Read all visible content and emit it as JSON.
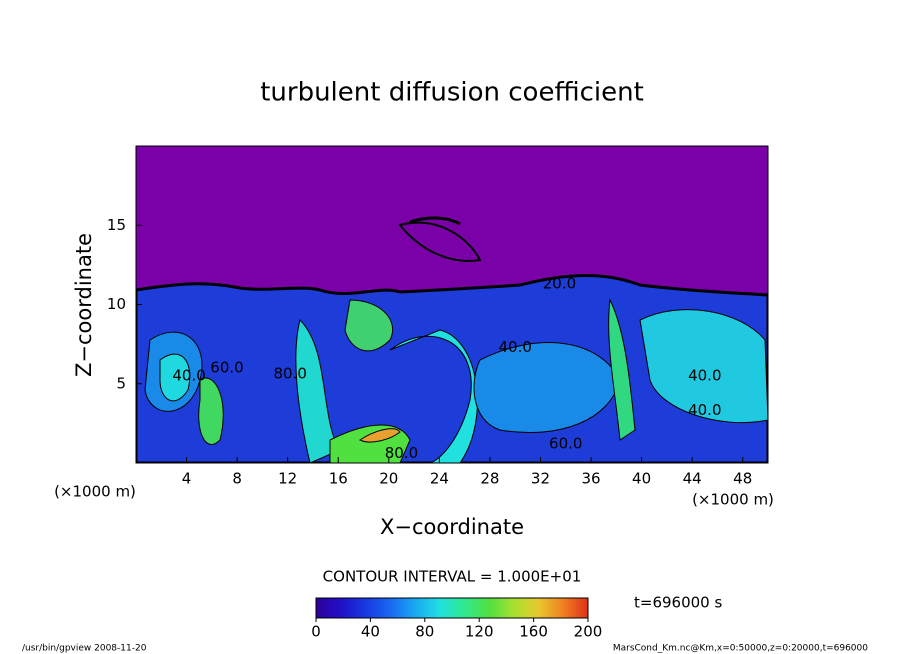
{
  "chart_data": {
    "type": "contour",
    "title": "turbulent diffusion coefficient",
    "xlabel": "X−coordinate",
    "ylabel": "Z−coordinate",
    "xunit_left": "(×1000 m)",
    "xunit_right": "(×1000 m)",
    "xlim": [
      0,
      50
    ],
    "ylim": [
      0,
      20
    ],
    "xticks": [
      4,
      8,
      12,
      16,
      20,
      24,
      28,
      32,
      36,
      40,
      44,
      48
    ],
    "yticks": [
      5,
      10,
      15
    ],
    "contour_interval": "CONTOUR INTERVAL = 1.000E+01",
    "contour_labels": [
      {
        "value": 40,
        "label": "40.0",
        "x": 4.2,
        "y": 5.5
      },
      {
        "value": 60,
        "label": "60.0",
        "x": 7.2,
        "y": 6.0
      },
      {
        "value": 80,
        "label": "80.0",
        "x": 12.2,
        "y": 5.6
      },
      {
        "value": 80,
        "label": "80.0",
        "x": 21,
        "y": 0.6
      },
      {
        "value": 40,
        "label": "40.0",
        "x": 30,
        "y": 7.3
      },
      {
        "value": 20,
        "label": "20.0",
        "x": 33.5,
        "y": 11.3
      },
      {
        "value": 60,
        "label": "60.0",
        "x": 34,
        "y": 1.2
      },
      {
        "value": 40,
        "label": "40.0",
        "x": 45,
        "y": 5.5
      },
      {
        "value": 40,
        "label": "40.0",
        "x": 45,
        "y": 3.3
      }
    ],
    "colorbar": {
      "lim": [
        0,
        200
      ],
      "ticks": [
        0,
        40,
        80,
        120,
        160,
        200
      ],
      "colors": [
        "#30009a",
        "#2010c8",
        "#1838e0",
        "#1868f0",
        "#18a8f0",
        "#20e0e0",
        "#30e890",
        "#50e040",
        "#a8e030",
        "#e8c830",
        "#f08020",
        "#e03018"
      ]
    },
    "time_label": "t=696000 s",
    "footer_left": "/usr/bin/gpview   2008-11-20",
    "footer_right": "MarsCond_Km.nc@Km,x=0:50000,z=0:20000,t=696000"
  }
}
